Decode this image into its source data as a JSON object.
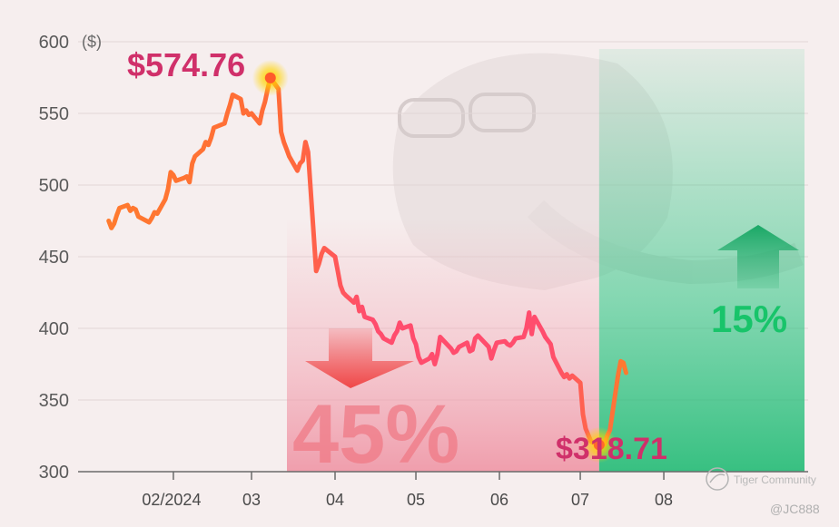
{
  "chart_data": {
    "type": "line",
    "y_unit": "($)",
    "ylim": [
      300,
      600
    ],
    "y_ticks": [
      300,
      350,
      400,
      450,
      500,
      550,
      600
    ],
    "x_ticks": [
      "02/2024",
      "03",
      "04",
      "05",
      "06",
      "07",
      "08"
    ],
    "grid": true,
    "series": [
      {
        "points": [
          [
            "2024-01-08",
            475
          ],
          [
            "2024-01-09",
            470
          ],
          [
            "2024-01-10",
            473
          ],
          [
            "2024-01-11",
            479
          ],
          [
            "2024-01-12",
            484
          ],
          [
            "2024-01-15",
            486
          ],
          [
            "2024-01-16",
            482
          ],
          [
            "2024-01-17",
            484
          ],
          [
            "2024-01-18",
            483
          ],
          [
            "2024-01-19",
            478
          ],
          [
            "2024-01-22",
            475
          ],
          [
            "2024-01-23",
            474
          ],
          [
            "2024-01-24",
            477
          ],
          [
            "2024-01-25",
            481
          ],
          [
            "2024-01-26",
            480
          ],
          [
            "2024-01-29",
            490
          ],
          [
            "2024-01-30",
            497
          ],
          [
            "2024-01-31",
            509
          ],
          [
            "2024-02-01",
            507
          ],
          [
            "2024-02-02",
            503
          ],
          [
            "2024-02-05",
            505
          ],
          [
            "2024-02-06",
            506
          ],
          [
            "2024-02-07",
            502
          ],
          [
            "2024-02-08",
            515
          ],
          [
            "2024-02-09",
            520
          ],
          [
            "2024-02-12",
            525
          ],
          [
            "2024-02-13",
            530
          ],
          [
            "2024-02-14",
            528
          ],
          [
            "2024-02-15",
            533
          ],
          [
            "2024-02-16",
            540
          ],
          [
            "2024-02-20",
            543
          ],
          [
            "2024-02-21",
            550
          ],
          [
            "2024-02-22",
            556
          ],
          [
            "2024-02-23",
            563
          ],
          [
            "2024-02-26",
            560
          ],
          [
            "2024-02-27",
            550
          ],
          [
            "2024-02-28",
            552
          ],
          [
            "2024-02-29",
            549
          ],
          [
            "2024-03-01",
            550
          ],
          [
            "2024-03-04",
            543
          ],
          [
            "2024-03-05",
            552
          ],
          [
            "2024-03-06",
            558
          ],
          [
            "2024-03-07",
            567
          ],
          [
            "2024-03-08",
            574.76
          ],
          [
            "2024-03-11",
            567
          ],
          [
            "2024-03-12",
            537
          ],
          [
            "2024-03-13",
            530
          ],
          [
            "2024-03-14",
            525
          ],
          [
            "2024-03-15",
            520
          ],
          [
            "2024-03-18",
            510
          ],
          [
            "2024-03-19",
            515
          ],
          [
            "2024-03-20",
            517
          ],
          [
            "2024-03-21",
            530
          ],
          [
            "2024-03-22",
            523
          ],
          [
            "2024-03-25",
            440
          ],
          [
            "2024-03-26",
            445
          ],
          [
            "2024-03-27",
            452
          ],
          [
            "2024-03-28",
            456
          ],
          [
            "2024-04-01",
            450
          ],
          [
            "2024-04-02",
            440
          ],
          [
            "2024-04-03",
            430
          ],
          [
            "2024-04-04",
            425
          ],
          [
            "2024-04-05",
            423
          ],
          [
            "2024-04-08",
            418
          ],
          [
            "2024-04-09",
            422
          ],
          [
            "2024-04-10",
            412
          ],
          [
            "2024-04-11",
            415
          ],
          [
            "2024-04-12",
            408
          ],
          [
            "2024-04-15",
            406
          ],
          [
            "2024-04-16",
            403
          ],
          [
            "2024-04-17",
            398
          ],
          [
            "2024-04-18",
            396
          ],
          [
            "2024-04-19",
            393
          ],
          [
            "2024-04-22",
            390
          ],
          [
            "2024-04-23",
            395
          ],
          [
            "2024-04-24",
            398
          ],
          [
            "2024-04-25",
            404
          ],
          [
            "2024-04-26",
            400
          ],
          [
            "2024-04-29",
            402
          ],
          [
            "2024-04-30",
            393
          ],
          [
            "2024-05-01",
            389
          ],
          [
            "2024-05-02",
            380
          ],
          [
            "2024-05-03",
            376
          ],
          [
            "2024-05-06",
            379
          ],
          [
            "2024-05-07",
            382
          ],
          [
            "2024-05-08",
            375
          ],
          [
            "2024-05-09",
            382
          ],
          [
            "2024-05-10",
            394
          ],
          [
            "2024-05-13",
            388
          ],
          [
            "2024-05-14",
            386
          ],
          [
            "2024-05-15",
            383
          ],
          [
            "2024-05-16",
            384
          ],
          [
            "2024-05-17",
            387
          ],
          [
            "2024-05-20",
            390
          ],
          [
            "2024-05-21",
            384
          ],
          [
            "2024-05-22",
            385
          ],
          [
            "2024-05-23",
            393
          ],
          [
            "2024-05-24",
            395
          ],
          [
            "2024-05-28",
            387
          ],
          [
            "2024-05-29",
            379
          ],
          [
            "2024-05-30",
            385
          ],
          [
            "2024-05-31",
            390
          ],
          [
            "2024-06-03",
            391
          ],
          [
            "2024-06-04",
            389
          ],
          [
            "2024-06-05",
            388
          ],
          [
            "2024-06-06",
            390
          ],
          [
            "2024-06-07",
            393
          ],
          [
            "2024-06-10",
            394
          ],
          [
            "2024-06-11",
            400
          ],
          [
            "2024-06-12",
            411
          ],
          [
            "2024-06-13",
            396
          ],
          [
            "2024-06-14",
            408
          ],
          [
            "2024-06-17",
            398
          ],
          [
            "2024-06-18",
            394
          ],
          [
            "2024-06-20",
            389
          ],
          [
            "2024-06-21",
            380
          ],
          [
            "2024-06-24",
            369
          ],
          [
            "2024-06-25",
            366
          ],
          [
            "2024-06-26",
            368
          ],
          [
            "2024-06-27",
            365
          ],
          [
            "2024-06-28",
            367
          ],
          [
            "2024-07-01",
            362
          ],
          [
            "2024-07-02",
            340
          ],
          [
            "2024-07-03",
            330
          ],
          [
            "2024-07-05",
            321
          ],
          [
            "2024-07-08",
            318.71
          ],
          [
            "2024-07-09",
            321
          ],
          [
            "2024-07-10",
            319
          ],
          [
            "2024-07-11",
            325
          ],
          [
            "2024-07-12",
            329
          ],
          [
            "2024-07-15",
            367
          ],
          [
            "2024-07-16",
            377
          ],
          [
            "2024-07-17",
            376
          ],
          [
            "2024-07-18",
            369
          ]
        ]
      }
    ],
    "annotations": {
      "high_label": "$574.76",
      "low_label": "$318.71",
      "drop_pct": "45%",
      "rise_pct": "15%"
    }
  },
  "watermark": {
    "brand": "Tiger Community",
    "handle": "@JC888"
  },
  "colors": {
    "line_start": "#ff7a2e",
    "line_mid": "#ff4d6d",
    "line_end": "#ff7a2e",
    "drop_band": "#f3a6b4",
    "drop_arrow": "#f04848",
    "rise_band": "#25c47f",
    "rise_arrow": "#1aa866",
    "callout": "#d0306a",
    "rise_text": "#18c46a",
    "grid": "#e2d6d6",
    "axis": "#6a6a6a"
  }
}
